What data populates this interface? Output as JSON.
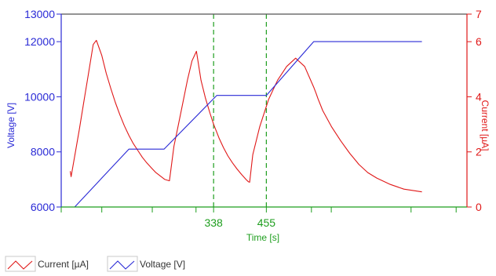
{
  "chart_data": {
    "type": "line",
    "xlabel": "Time [s]",
    "ylabel": "Voltage [V]",
    "y2label": "Current [µA]",
    "xlim": [
      0,
      900
    ],
    "ylim": [
      6000,
      13000
    ],
    "y2lim": [
      0,
      7
    ],
    "yticks": [
      6000,
      8000,
      10000,
      12000,
      13000
    ],
    "y2ticks": [
      0,
      2,
      4,
      6,
      7
    ],
    "y2ticks_display": [
      "0",
      "2",
      "4",
      "6",
      "7"
    ],
    "xticks_labeled": [
      338,
      455
    ],
    "xticks_unlabeled": [
      0,
      90,
      202,
      299,
      555,
      599,
      776,
      876
    ],
    "vertical_markers": [
      338,
      455
    ],
    "series": [
      {
        "name": "Current [µA]",
        "axis": "right",
        "color": "#e01818",
        "x": [
          20,
          22,
          30,
          40,
          50,
          60,
          70,
          71,
          78,
          90,
          100,
          110,
          120,
          130,
          140,
          150,
          160,
          170,
          180,
          190,
          200,
          210,
          220,
          230,
          240,
          250,
          260,
          270,
          280,
          290,
          300,
          310,
          320,
          330,
          338,
          341,
          350,
          360,
          370,
          380,
          390,
          400,
          410,
          415,
          418,
          425,
          440,
          460,
          480,
          500,
          520,
          540,
          560,
          566,
          569,
          580,
          600,
          620,
          640,
          655,
          660,
          680,
          700,
          730,
          760,
          800
        ],
        "values": [
          1.3,
          1.1,
          1.85,
          2.8,
          3.8,
          4.8,
          5.8,
          5.9,
          6.05,
          5.5,
          4.85,
          4.3,
          3.8,
          3.35,
          2.95,
          2.6,
          2.3,
          2.05,
          1.8,
          1.6,
          1.42,
          1.25,
          1.12,
          1.0,
          0.95,
          2.2,
          3.0,
          3.8,
          4.6,
          5.3,
          5.65,
          4.6,
          3.95,
          3.4,
          3.0,
          2.88,
          2.5,
          2.15,
          1.85,
          1.6,
          1.38,
          1.18,
          1.0,
          0.92,
          0.9,
          1.9,
          2.9,
          3.9,
          4.6,
          5.1,
          5.4,
          5.1,
          4.35,
          4.1,
          3.95,
          3.5,
          2.9,
          2.4,
          1.95,
          1.65,
          1.55,
          1.25,
          1.05,
          0.82,
          0.65,
          0.55
        ]
      },
      {
        "name": "Voltage [V]",
        "axis": "left",
        "color": "#2a2ad6",
        "x": [
          20,
          30,
          150,
          228,
          345,
          455,
          560,
          800
        ],
        "values": [
          6000,
          6000,
          8100,
          8100,
          10050,
          10050,
          12000,
          12000
        ]
      }
    ],
    "legend": [
      {
        "label": "Current [µA]",
        "color": "#e01818"
      },
      {
        "label": "Voltage [V]",
        "color": "#2a2ad6"
      }
    ],
    "legend_position": "bottom-left",
    "grid": false
  }
}
